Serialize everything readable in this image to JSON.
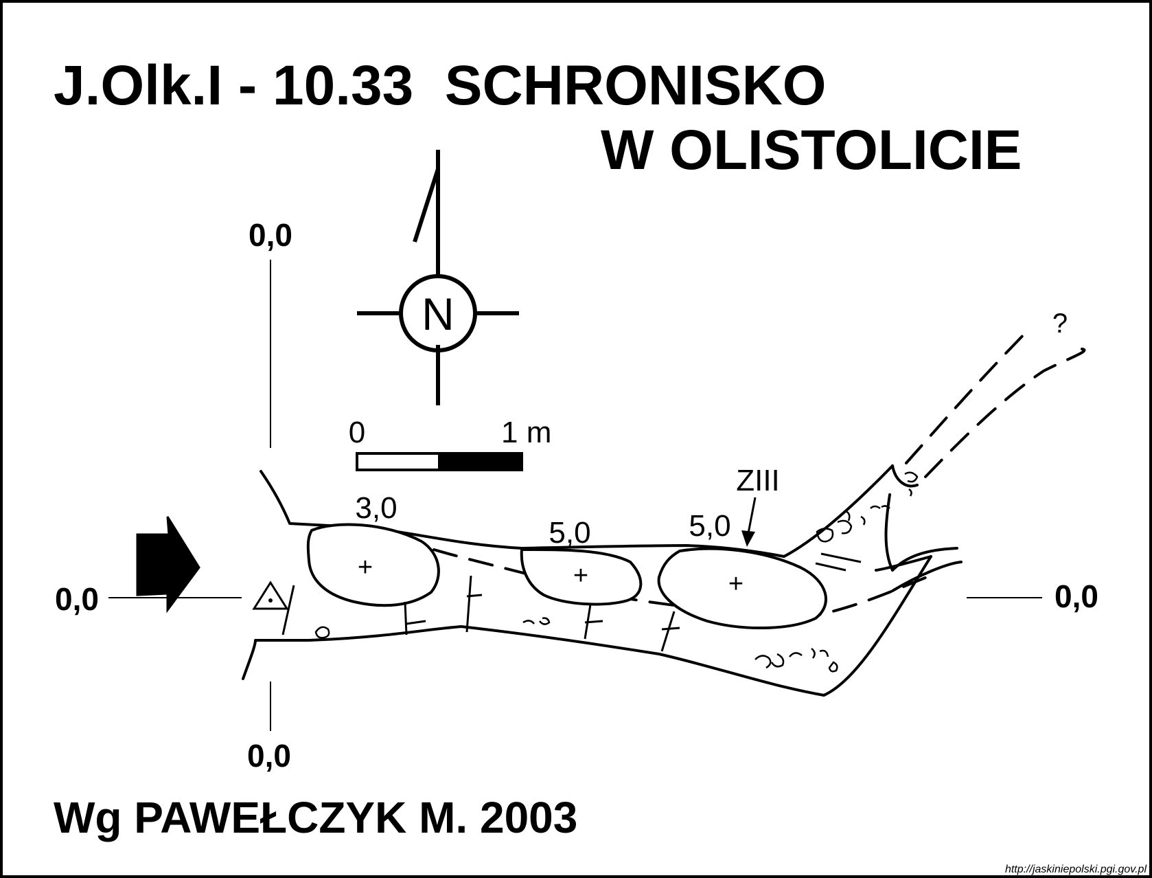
{
  "title": {
    "line1": "J.Olk.I - 10.33  SCHRONISKO",
    "line2": "W OLISTOLICIE"
  },
  "compass": {
    "north_label": "N"
  },
  "scale_bar": {
    "start_label": "0",
    "end_label": "1 m"
  },
  "survey_axes": {
    "top": "0,0",
    "bottom": "0,0",
    "left": "0,0",
    "right": "0,0"
  },
  "heights": [
    "3,0",
    "5,0",
    "5,0"
  ],
  "room_markers": [
    "+",
    "+",
    "+"
  ],
  "labels": {
    "zone": "ZIII",
    "unknown_passage": "?"
  },
  "author": "Wg PAWEŁCZYK M. 2003",
  "source_credit": "http://jaskiniepolski.pgi.gov.pl",
  "colors": {
    "ink": "#000000",
    "paper": "#ffffff"
  }
}
